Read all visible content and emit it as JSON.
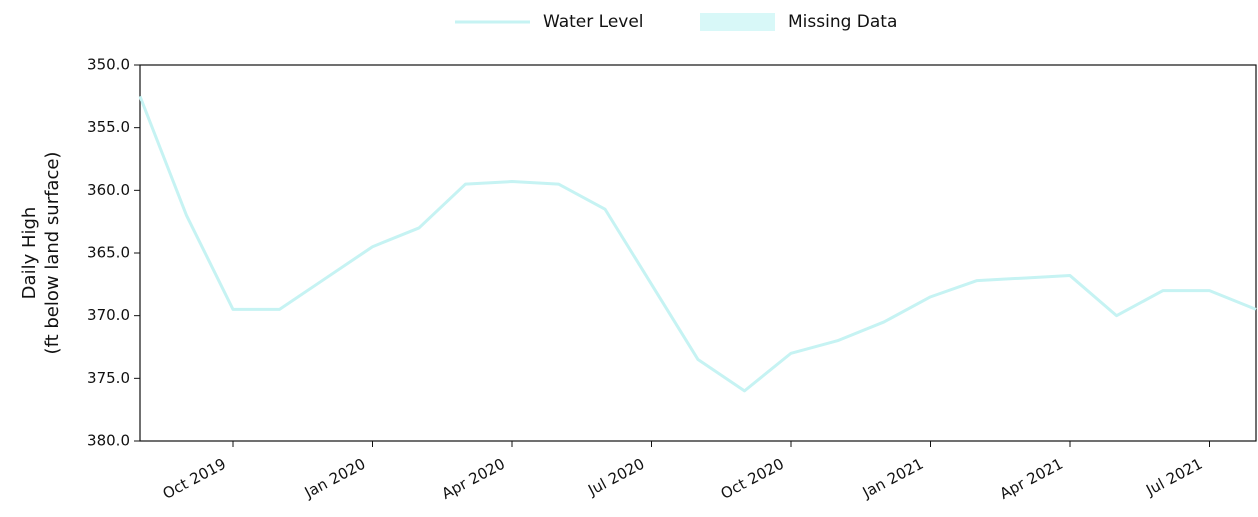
{
  "chart_data": {
    "type": "line",
    "y_label_lines": [
      "Daily High",
      "(ft below land surface)"
    ],
    "x": [
      "2019-08",
      "2019-09",
      "2019-10",
      "2019-11",
      "2019-12",
      "2020-01",
      "2020-02",
      "2020-03",
      "2020-04",
      "2020-05",
      "2020-06",
      "2020-07",
      "2020-08",
      "2020-09",
      "2020-10",
      "2020-11",
      "2020-12",
      "2021-01",
      "2021-02",
      "2021-03",
      "2021-04",
      "2021-05",
      "2021-06",
      "2021-07",
      "2021-08"
    ],
    "series": [
      {
        "name": "Water Level",
        "color": "#c6f3f3",
        "values": [
          352.5,
          362,
          369.5,
          369.5,
          367,
          364.5,
          363,
          359.5,
          359.3,
          359.5,
          361.5,
          367.5,
          373.5,
          376,
          373,
          372,
          370.5,
          368.5,
          367.2,
          367,
          366.8,
          370,
          368,
          368,
          369.5
        ]
      }
    ],
    "missing_data_legend": {
      "name": "Missing Data",
      "color": "#d8f8f8"
    },
    "xlim": [
      "2019-08",
      "2021-08"
    ],
    "xticks": [
      {
        "value": "2019-10",
        "label": "Oct 2019"
      },
      {
        "value": "2020-01",
        "label": "Jan 2020"
      },
      {
        "value": "2020-04",
        "label": "Apr 2020"
      },
      {
        "value": "2020-07",
        "label": "Jul 2020"
      },
      {
        "value": "2020-10",
        "label": "Oct 2020"
      },
      {
        "value": "2021-01",
        "label": "Jan 2021"
      },
      {
        "value": "2021-04",
        "label": "Apr 2021"
      },
      {
        "value": "2021-07",
        "label": "Jul 2021"
      }
    ],
    "ylim": [
      380,
      350
    ],
    "yticks": [
      {
        "value": 350,
        "label": "350.0"
      },
      {
        "value": 355,
        "label": "355.0"
      },
      {
        "value": 360,
        "label": "360.0"
      },
      {
        "value": 365,
        "label": "365.0"
      },
      {
        "value": 370,
        "label": "370.0"
      },
      {
        "value": 375,
        "label": "375.0"
      },
      {
        "value": 380,
        "label": "380.0"
      }
    ]
  }
}
